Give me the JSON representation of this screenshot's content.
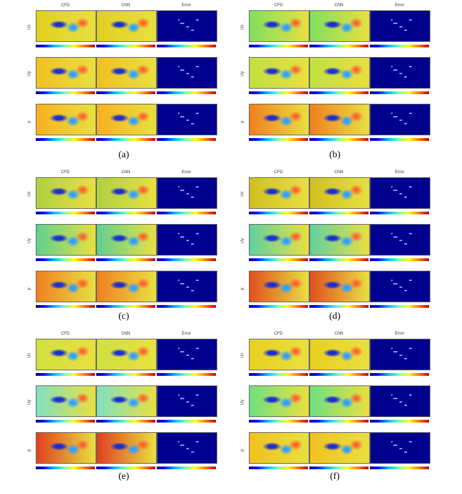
{
  "columns": [
    "CFD",
    "CNN",
    "Error"
  ],
  "rows": [
    "Ux",
    "Uy",
    "p"
  ],
  "captions": [
    "(a)",
    "(b)",
    "(c)",
    "(d)",
    "(e)",
    "(f)"
  ],
  "panels": [
    {
      "id": "a",
      "gradient": [
        "#e0d020",
        "#f0c020",
        "#f8b020"
      ]
    },
    {
      "id": "b",
      "gradient": [
        "#80e060",
        "#c0e040",
        "#f08020"
      ]
    },
    {
      "id": "c",
      "gradient": [
        "#b0d040",
        "#60d090",
        "#f08020"
      ]
    },
    {
      "id": "d",
      "gradient": [
        "#d0c020",
        "#60d0a0",
        "#e05020"
      ]
    },
    {
      "id": "e",
      "gradient": [
        "#d0e040",
        "#80e0c0",
        "#e04020"
      ]
    },
    {
      "id": "f",
      "gradient": [
        "#e8d020",
        "#70e080",
        "#f0c020"
      ]
    }
  ],
  "colors": {
    "error_bg": "#00008f",
    "obstacle": "#1b2fd0"
  }
}
